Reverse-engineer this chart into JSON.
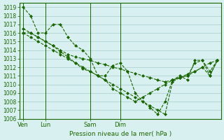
{
  "title": "",
  "xlabel": "Pression niveau de la mer( hPa )",
  "ylabel": "",
  "bg_color": "#d8f0f0",
  "grid_color": "#aacccc",
  "line_color": "#1a6600",
  "ylim": [
    1006,
    1019.5
  ],
  "xtick_labels": [
    "Ven",
    "Lun",
    "Sam",
    "Dim"
  ],
  "xtick_positions": [
    0,
    3,
    9,
    13
  ],
  "series1": [
    1019.0,
    1018.0,
    1016.0,
    1016.0,
    1017.0,
    1017.0,
    1015.5,
    1014.5,
    1014.0,
    1013.0,
    1011.0,
    1011.0,
    1012.2,
    1012.5,
    1011.5,
    1009.0,
    1008.0,
    1007.3,
    1006.5,
    1008.0,
    1010.5,
    1011.0,
    1010.5,
    1012.8,
    1012.8,
    1011.5,
    1012.8
  ],
  "series2": [
    1016.0,
    1016.0,
    1015.5,
    1015.0,
    1014.5,
    1014.0,
    1013.5,
    1013.2,
    1013.0,
    1012.8,
    1012.5,
    1012.3,
    1012.0,
    1011.8,
    1011.5,
    1011.3,
    1011.0,
    1010.8,
    1010.5,
    1010.3,
    1010.5,
    1010.8,
    1011.0,
    1011.5,
    1012.0,
    1012.5,
    1012.8
  ],
  "series3": [
    1016.5,
    1016.0,
    1015.5,
    1015.0,
    1014.5,
    1013.8,
    1013.2,
    1012.5,
    1011.8,
    1011.5,
    1011.0,
    1010.5,
    1009.5,
    1009.0,
    1008.5,
    1008.0,
    1008.5,
    1009.0,
    1009.5,
    1010.0,
    1010.5,
    1010.8,
    1011.2,
    1011.5,
    1012.0,
    1011.0,
    1012.8
  ],
  "series4": [
    1016.0,
    1015.5,
    1015.0,
    1014.5,
    1014.0,
    1013.5,
    1013.0,
    1012.5,
    1012.0,
    1011.5,
    1011.0,
    1010.5,
    1010.0,
    1009.5,
    1009.0,
    1008.5,
    1008.0,
    1007.5,
    1007.0,
    1006.5,
    1010.3,
    1010.8,
    1011.0,
    1012.5,
    1012.8,
    1011.0,
    1012.8
  ]
}
